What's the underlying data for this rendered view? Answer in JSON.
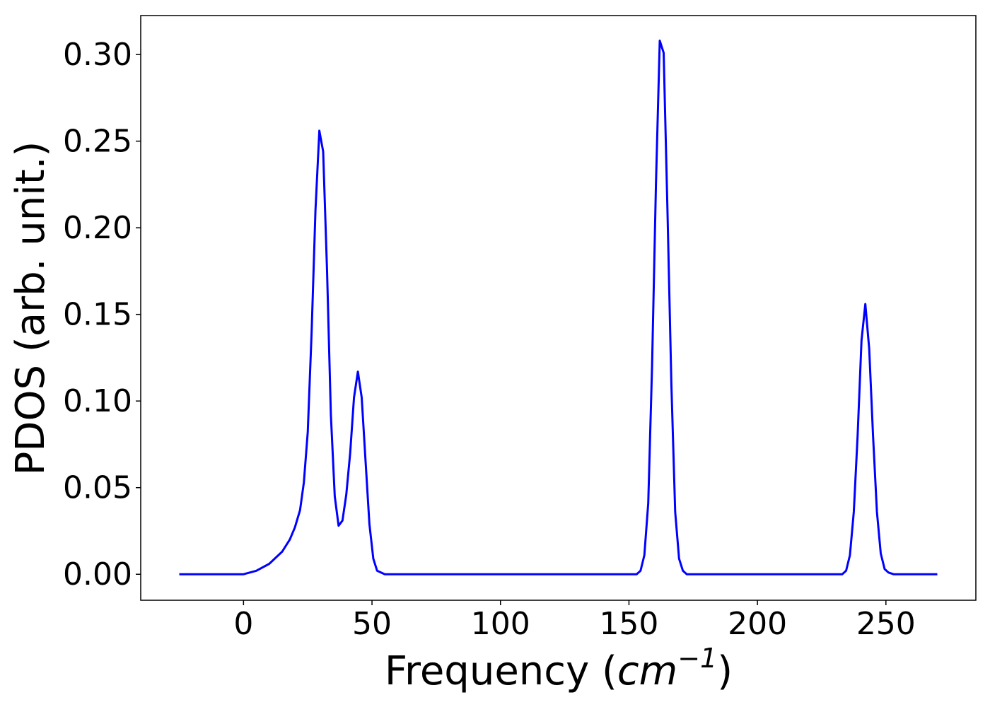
{
  "chart_data": {
    "type": "line",
    "title": "",
    "xlabel": "Frequency (",
    "xlabel_math": "cm",
    "xlabel_exp": "−1",
    "xlabel_close": ")",
    "ylabel": "PDOS (arb. unit.)",
    "xlim": [
      -40,
      285
    ],
    "ylim": [
      -0.015,
      0.3225
    ],
    "xticks": [
      0,
      50,
      100,
      150,
      200,
      250
    ],
    "xtick_labels": [
      "0",
      "50",
      "100",
      "150",
      "200",
      "250"
    ],
    "yticks": [
      0.0,
      0.05,
      0.1,
      0.15,
      0.2,
      0.25,
      0.3
    ],
    "ytick_labels": [
      "0.00",
      "0.05",
      "0.10",
      "0.15",
      "0.20",
      "0.25",
      "0.30"
    ],
    "grid": false,
    "series": [
      {
        "color": "#0000ff",
        "x": [
          -25,
          0,
          5,
          10,
          15,
          18,
          20,
          22,
          23.5,
          25,
          26.5,
          28,
          29.5,
          31,
          32.5,
          34,
          35.5,
          37,
          38.5,
          40,
          41.5,
          43,
          44.5,
          46,
          47.5,
          49,
          50.5,
          52,
          55,
          100,
          153,
          154.5,
          156,
          157.5,
          159,
          160.5,
          162,
          163.5,
          165,
          166.5,
          168,
          169.5,
          171,
          172.5,
          175,
          200,
          233,
          234.5,
          236,
          237.5,
          239,
          240.5,
          242,
          243.5,
          245,
          246.5,
          248,
          249.5,
          251,
          253,
          270
        ],
        "y": [
          0.0,
          0.0,
          0.002,
          0.006,
          0.013,
          0.02,
          0.027,
          0.037,
          0.053,
          0.082,
          0.14,
          0.21,
          0.256,
          0.244,
          0.175,
          0.092,
          0.045,
          0.028,
          0.031,
          0.046,
          0.07,
          0.102,
          0.117,
          0.102,
          0.065,
          0.029,
          0.009,
          0.002,
          0.0,
          0.0,
          0.0,
          0.002,
          0.011,
          0.041,
          0.12,
          0.225,
          0.308,
          0.301,
          0.21,
          0.11,
          0.036,
          0.009,
          0.002,
          0.0,
          0.0,
          0.0,
          0.0,
          0.002,
          0.011,
          0.036,
          0.08,
          0.135,
          0.156,
          0.13,
          0.08,
          0.036,
          0.012,
          0.003,
          0.001,
          0.0,
          0.0
        ]
      }
    ]
  }
}
